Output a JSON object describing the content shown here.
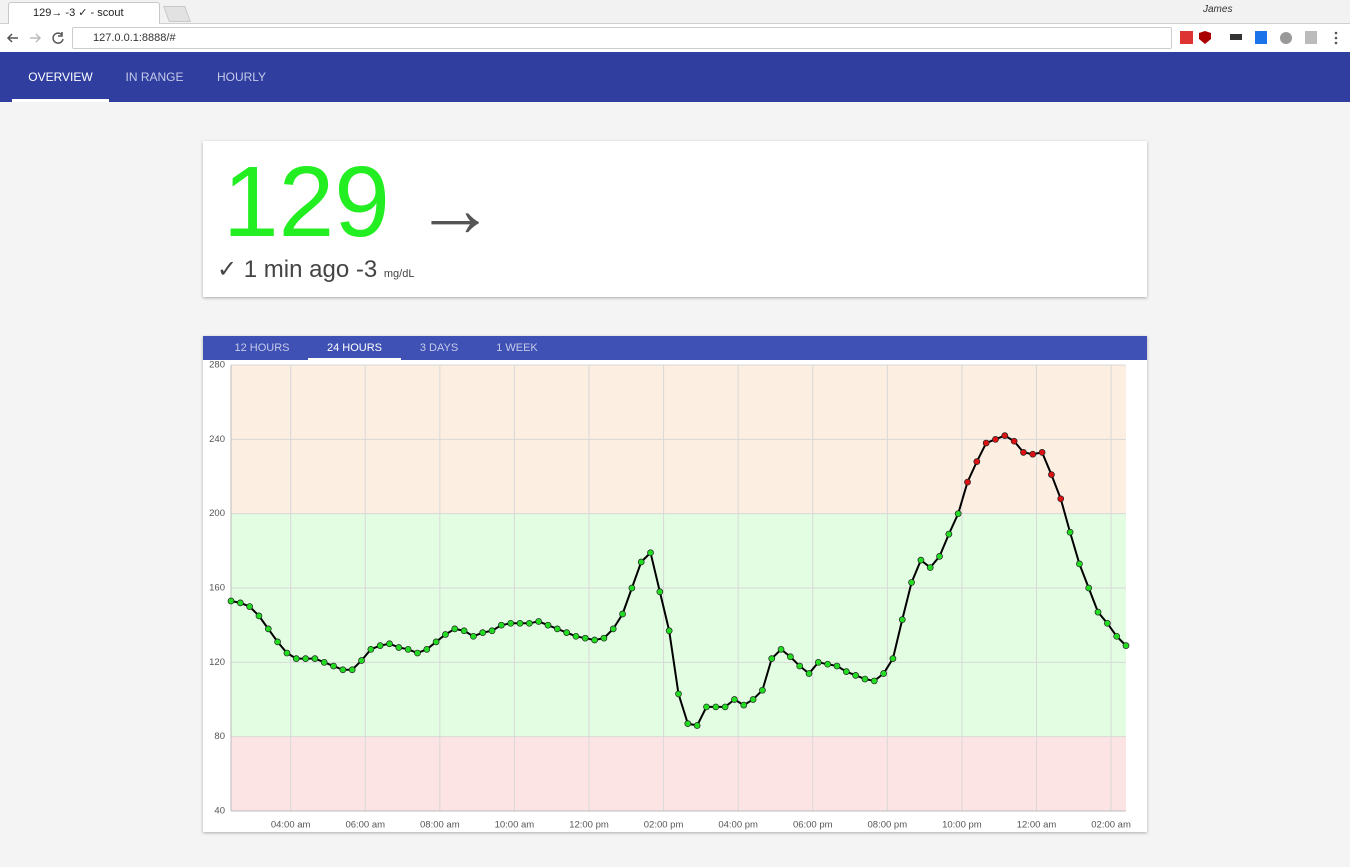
{
  "browser": {
    "tab_title": "129→ -3 ✓ - scout",
    "url": "127.0.0.1:8888/#",
    "user": "James"
  },
  "nav": {
    "tabs": [
      "OVERVIEW",
      "IN RANGE",
      "HOURLY"
    ],
    "active": 0
  },
  "reading": {
    "value": "129",
    "trend": "→",
    "status": "✓",
    "age": "1 min ago",
    "delta": "-3",
    "unit": "mg/dL"
  },
  "chart_tabs": {
    "tabs": [
      "12 HOURS",
      "24 HOURS",
      "3 DAYS",
      "1 WEEK"
    ],
    "active": 1
  },
  "chart_data": {
    "type": "line",
    "x": [
      2.4,
      2.65,
      2.9,
      3.15,
      3.4,
      3.65,
      3.9,
      4.15,
      4.4,
      4.65,
      4.9,
      5.15,
      5.4,
      5.65,
      5.9,
      6.15,
      6.4,
      6.65,
      6.9,
      7.15,
      7.4,
      7.65,
      7.9,
      8.15,
      8.4,
      8.65,
      8.9,
      9.15,
      9.4,
      9.65,
      9.9,
      10.15,
      10.4,
      10.65,
      10.9,
      11.15,
      11.4,
      11.65,
      11.9,
      12.15,
      12.4,
      12.65,
      12.9,
      13.15,
      13.4,
      13.65,
      13.9,
      14.15,
      14.4,
      14.65,
      14.9,
      15.15,
      15.4,
      15.65,
      15.9,
      16.15,
      16.4,
      16.65,
      16.9,
      17.15,
      17.4,
      17.65,
      17.9,
      18.15,
      18.4,
      18.65,
      18.9,
      19.15,
      19.4,
      19.65,
      19.9,
      20.15,
      20.4,
      20.65,
      20.9,
      21.15,
      21.4,
      21.65,
      21.9,
      22.15,
      22.4,
      22.65,
      22.9,
      23.15,
      23.4,
      23.65,
      23.9,
      24.15,
      24.4,
      24.65,
      24.9,
      25.15,
      25.4,
      25.65,
      25.9,
      26.15,
      26.4
    ],
    "series": [
      {
        "values": [
          153,
          152,
          150,
          145,
          138,
          131,
          125,
          122,
          122,
          122,
          120,
          118,
          116,
          116,
          121,
          127,
          129,
          130,
          128,
          127,
          125,
          127,
          131,
          135,
          138,
          137,
          134,
          136,
          137,
          140,
          141,
          141,
          141,
          142,
          140,
          138,
          136,
          134,
          133,
          132,
          133,
          138,
          146,
          160,
          174,
          179,
          158,
          137,
          103,
          87,
          86,
          96,
          96,
          96,
          100,
          97,
          100,
          105,
          122,
          127,
          123,
          118,
          114,
          120,
          119,
          118,
          115,
          113,
          111,
          110,
          114,
          122,
          143,
          163,
          175,
          171,
          177,
          189,
          200,
          217,
          228,
          238,
          240,
          242,
          239,
          233,
          232,
          233,
          221,
          208,
          190,
          173,
          160,
          147,
          141,
          134,
          129
        ]
      }
    ],
    "line_color": "#000000",
    "bands": [
      {
        "from": 40,
        "to": 80,
        "color": "#fde4e4",
        "point_color": "#dd2222"
      },
      {
        "from": 80,
        "to": 200,
        "color": "#e2fde2",
        "point_color": "#22dd22"
      },
      {
        "from": 200,
        "to": 280,
        "color": "#fdeee2",
        "point_color": "#dd1111"
      }
    ],
    "xlim": [
      2.4,
      26.4
    ],
    "xticks": [
      {
        "value": 4,
        "label": "04:00 am"
      },
      {
        "value": 6,
        "label": "06:00 am"
      },
      {
        "value": 8,
        "label": "08:00 am"
      },
      {
        "value": 10,
        "label": "10:00 am"
      },
      {
        "value": 12,
        "label": "12:00 pm"
      },
      {
        "value": 14,
        "label": "02:00 pm"
      },
      {
        "value": 16,
        "label": "04:00 pm"
      },
      {
        "value": 18,
        "label": "06:00 pm"
      },
      {
        "value": 20,
        "label": "08:00 pm"
      },
      {
        "value": 22,
        "label": "10:00 pm"
      },
      {
        "value": 24,
        "label": "12:00 am"
      },
      {
        "value": 26,
        "label": "02:00 am"
      }
    ],
    "ylim": [
      40,
      280
    ],
    "yticks": [
      40,
      80,
      120,
      160,
      200,
      240,
      280
    ],
    "grid": true
  }
}
